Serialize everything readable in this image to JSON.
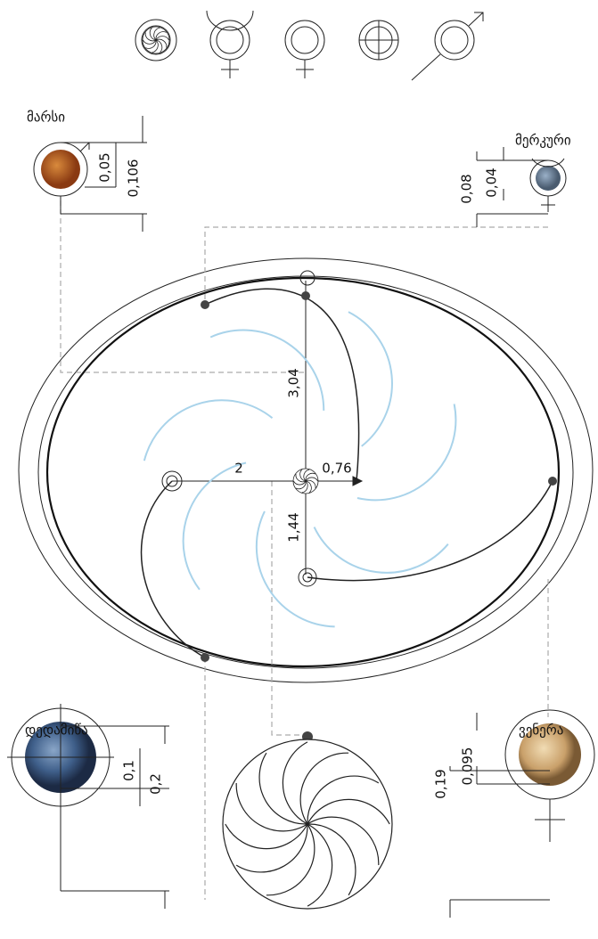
{
  "planets": [
    {
      "name": "მარსი",
      "dims": [
        "0,05",
        "0,106"
      ]
    },
    {
      "name": "მერკური",
      "dims": [
        "0,08",
        "0,04"
      ]
    },
    {
      "name": "დედამიწა",
      "dims": [
        "0,1",
        "0,2"
      ]
    },
    {
      "name": "ვენერა",
      "dims": [
        "0,19",
        "0,095"
      ]
    }
  ],
  "orbit_dims": [
    "3,04",
    "2",
    "0,76",
    "1,44"
  ]
}
